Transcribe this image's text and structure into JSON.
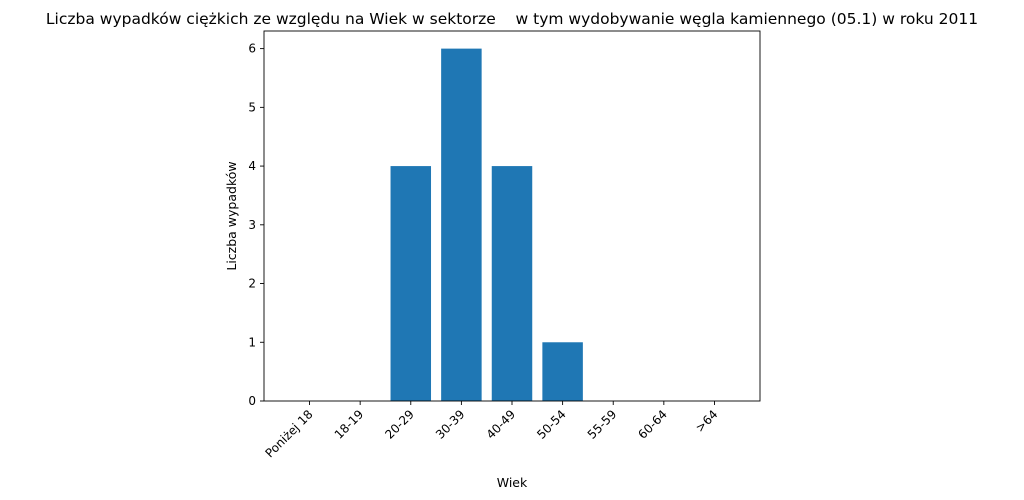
{
  "chart_data": {
    "type": "bar",
    "title": "Liczba wypadków ciężkich ze względu na Wiek w sektorze    w tym wydobywanie węgla kamiennego (05.1) w roku 2011",
    "xlabel": "Wiek",
    "ylabel": "Liczba wypadków",
    "categories": [
      "Poniżej 18",
      "18-19",
      "20-29",
      "30-39",
      "40-49",
      "50-54",
      "55-59",
      "60-64",
      ">64"
    ],
    "values": [
      0,
      0,
      4,
      6,
      4,
      1,
      0,
      0,
      0
    ],
    "ylim": [
      0,
      6.3
    ],
    "yticks": [
      0,
      1,
      2,
      3,
      4,
      5,
      6
    ],
    "bar_color": "#1f77b4",
    "grid": false,
    "legend": false
  }
}
